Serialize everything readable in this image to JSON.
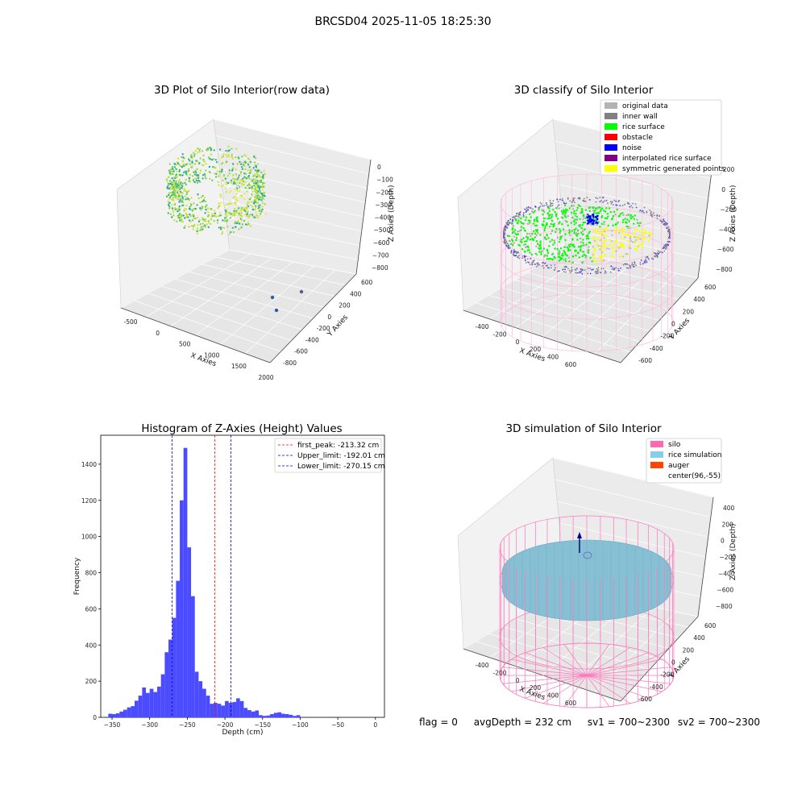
{
  "figure_title": "BRCSD04 2025-11-05 18:25:30",
  "panel1": {
    "title": "3D Plot of Silo Interior(row data)",
    "xlabel": "X Axies",
    "ylabel": "Y Axies",
    "zlabel": "Z Axies (Depth)",
    "x_ticks": [
      "-500",
      "0",
      "500",
      "1000",
      "1500",
      "2000"
    ],
    "y_ticks": [
      "-800",
      "-600",
      "-400",
      "-200",
      "0",
      "200",
      "400",
      "600"
    ],
    "z_ticks": [
      "0",
      "−100",
      "−200",
      "−300",
      "−400",
      "−500",
      "−600",
      "−700",
      "−800"
    ]
  },
  "panel2": {
    "title": "3D classify of Silo Interior",
    "xlabel": "X Axies",
    "ylabel": "Y Axies",
    "zlabel": "Z Axies (Depth)",
    "x_ticks": [
      "-400",
      "-200",
      "0",
      "200",
      "400",
      "600"
    ],
    "y_ticks": [
      "-600",
      "-400",
      "-200",
      "0",
      "200",
      "400",
      "600"
    ],
    "z_ticks": [
      "200",
      "0",
      "−200",
      "−400",
      "−600",
      "−800"
    ],
    "legend": [
      {
        "label": "original data",
        "color": "#b3b3b3"
      },
      {
        "label": "inner wall",
        "color": "#808080"
      },
      {
        "label": "rice surface",
        "color": "#00ff00"
      },
      {
        "label": "obstacle",
        "color": "#ff0000"
      },
      {
        "label": "noise",
        "color": "#0000ff"
      },
      {
        "label": "interpolated rice surface",
        "color": "#800080"
      },
      {
        "label": "symmetric generated points",
        "color": "#ffff00"
      }
    ]
  },
  "panel4": {
    "title": "3D simulation of Silo Interior",
    "xlabel": "X Axies",
    "ylabel": "Y Axies",
    "zlabel": "Z Axies (Depth)",
    "x_ticks": [
      "-400",
      "-200",
      "0",
      "200",
      "400",
      "600"
    ],
    "y_ticks": [
      "-600",
      "-400",
      "-200",
      "0",
      "200",
      "400",
      "600"
    ],
    "z_ticks": [
      "400",
      "200",
      "0",
      "−200",
      "−400",
      "−600",
      "−800"
    ],
    "legend": [
      {
        "label": "silo",
        "color": "#ff69b4"
      },
      {
        "label": "rice simulation",
        "color": "#87ceeb"
      },
      {
        "label": "auger",
        "color": "#ff4500"
      },
      {
        "label": "center(96,-55)",
        "color": "#ffffff"
      }
    ]
  },
  "status": {
    "flag": "flag = 0",
    "avg": "avgDepth = 232 cm",
    "sv1": "sv1 = 700~2300",
    "sv2": "sv2 = 700~2300"
  },
  "chart_data": {
    "type": "bar",
    "title": "Histogram of Z-Axies (Height) Values",
    "xlabel": "Depth (cm)",
    "ylabel": "Frequency",
    "xlim": [
      -365,
      12
    ],
    "ylim": [
      0,
      1560
    ],
    "x_ticks": [
      -350,
      -300,
      -250,
      -200,
      -150,
      -100,
      -50,
      0
    ],
    "x_tick_labels": [
      "−350",
      "−300",
      "−250",
      "−200",
      "−150",
      "−100",
      "−50",
      "0"
    ],
    "y_ticks": [
      0,
      200,
      400,
      600,
      800,
      1000,
      1200,
      1400
    ],
    "bin_start": -355,
    "bin_width": 5,
    "bar_color": "#4b4bff",
    "values": [
      20,
      18,
      22,
      32,
      42,
      55,
      62,
      92,
      120,
      165,
      135,
      158,
      140,
      170,
      238,
      360,
      430,
      550,
      755,
      1200,
      1490,
      940,
      670,
      252,
      200,
      158,
      120,
      75,
      80,
      75,
      65,
      90,
      80,
      85,
      105,
      90,
      52,
      40,
      32,
      38,
      12,
      8,
      10,
      18,
      25,
      28,
      20,
      18,
      14,
      8,
      12
    ],
    "vlines": [
      {
        "name": "first_peak: -213.32 cm",
        "x": -213.32,
        "color": "#ff0000"
      },
      {
        "name": "Upper_limit: -192.01 cm",
        "x": -192.01,
        "color": "#0000cc"
      },
      {
        "name": "Lower_limit: -270.15 cm",
        "x": -270.15,
        "color": "#0000cc"
      }
    ]
  }
}
